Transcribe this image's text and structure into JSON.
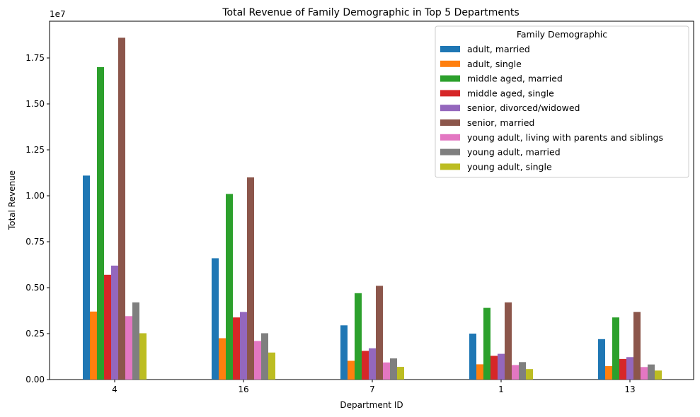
{
  "chart_data": {
    "type": "bar",
    "title": "Total Revenue of Family Demographic in Top 5 Departments",
    "xlabel": "Department ID",
    "ylabel": "Total Revenue",
    "y_offset_label": "1e7",
    "categories": [
      "4",
      "16",
      "7",
      "1",
      "13"
    ],
    "ylim": [
      0,
      19500000
    ],
    "yticks": [
      0,
      2500000,
      5000000,
      7500000,
      10000000,
      12500000,
      15000000,
      17500000
    ],
    "ytick_labels": [
      "0.00",
      "0.25",
      "0.50",
      "0.75",
      "1.00",
      "1.25",
      "1.50",
      "1.75"
    ],
    "grid": false,
    "legend": {
      "title": "Family Demographic",
      "placement": "top-right"
    },
    "series": [
      {
        "name": "adult, married",
        "color": "#1f77b4",
        "values": [
          11100000,
          6600000,
          2950000,
          2500000,
          2200000
        ]
      },
      {
        "name": "adult, single",
        "color": "#ff7f0e",
        "values": [
          3700000,
          2250000,
          1020000,
          830000,
          730000
        ]
      },
      {
        "name": "middle aged, married",
        "color": "#2ca02c",
        "values": [
          17000000,
          10100000,
          4700000,
          3900000,
          3380000
        ]
      },
      {
        "name": "middle aged, single",
        "color": "#d62728",
        "values": [
          5700000,
          3380000,
          1560000,
          1290000,
          1120000
        ]
      },
      {
        "name": "senior, divorced/widowed",
        "color": "#9467bd",
        "values": [
          6200000,
          3680000,
          1700000,
          1400000,
          1220000
        ]
      },
      {
        "name": "senior, married",
        "color": "#8c564b",
        "values": [
          18600000,
          11000000,
          5100000,
          4200000,
          3680000
        ]
      },
      {
        "name": "young adult, living with parents and siblings",
        "color": "#e377c2",
        "values": [
          3450000,
          2100000,
          930000,
          790000,
          680000
        ]
      },
      {
        "name": "young adult, married",
        "color": "#7f7f7f",
        "values": [
          4200000,
          2520000,
          1150000,
          950000,
          820000
        ]
      },
      {
        "name": "young adult, single",
        "color": "#bcbd22",
        "values": [
          2520000,
          1470000,
          690000,
          570000,
          490000
        ]
      }
    ]
  }
}
